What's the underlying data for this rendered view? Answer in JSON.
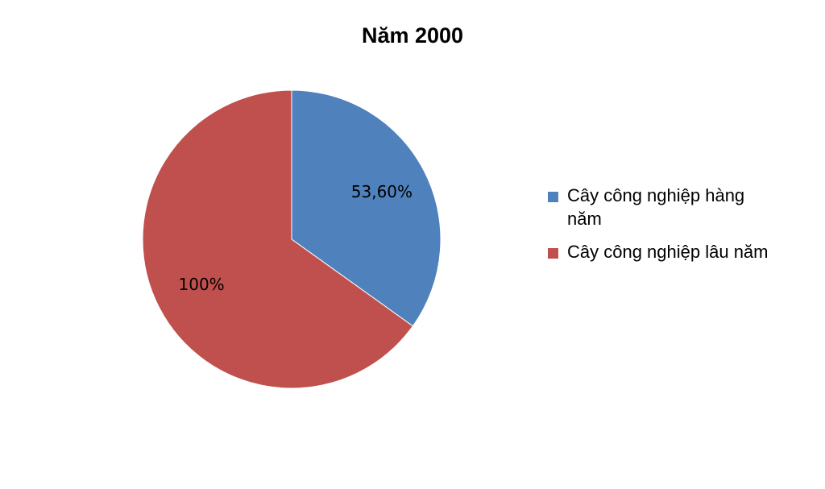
{
  "chart_data": {
    "type": "pie",
    "title": "Năm 2000",
    "categories": [
      "Cây công nghiệp hàng năm",
      "Cây công nghiệp lâu năm"
    ],
    "values": [
      53.6,
      100
    ],
    "value_labels": [
      "53,60%",
      "100%"
    ],
    "colors": [
      "#4f81bd",
      "#c0504d"
    ],
    "legend": "right"
  }
}
